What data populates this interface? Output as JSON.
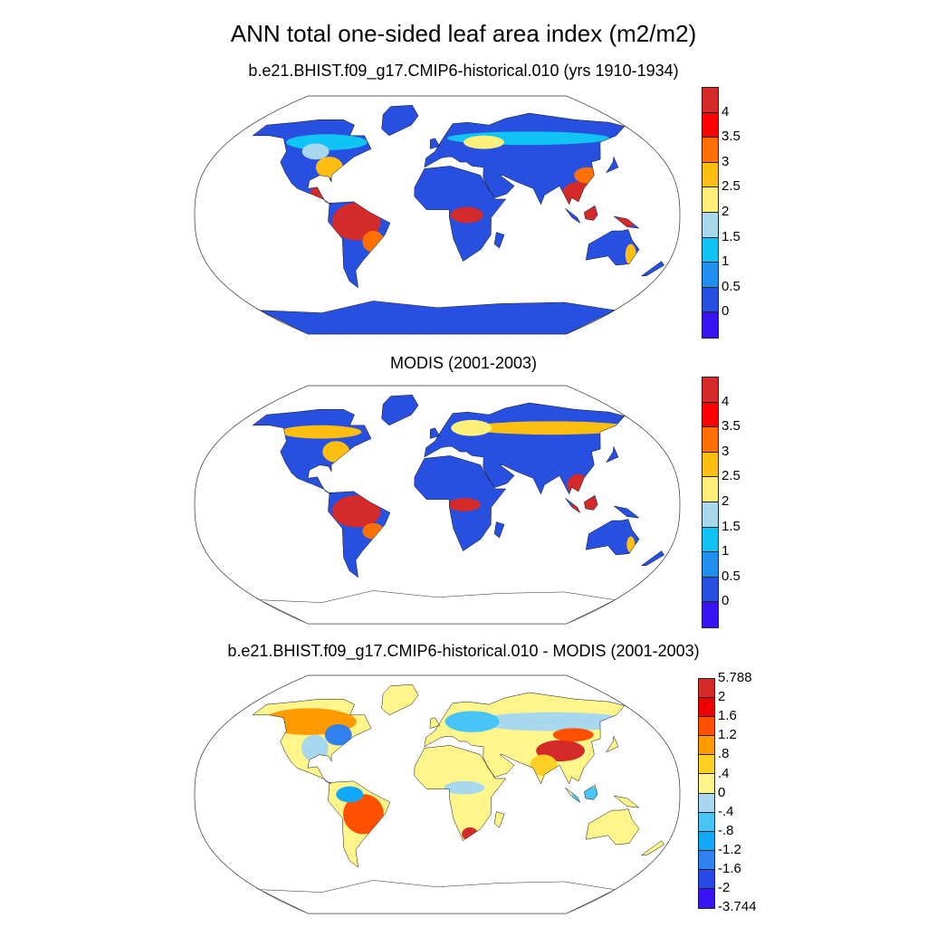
{
  "title": "ANN total one-sided leaf area index (m2/m2)",
  "panels": [
    {
      "subtitle": "b.e21.BHIST.f09_g17.CMIP6-historical.010 (yrs 1910-1934)",
      "colorbar": {
        "colors": [
          "#D42A2A",
          "#FF0000",
          "#FF7000",
          "#FFBF10",
          "#FFF07A",
          "#A8D8EE",
          "#10C4F6",
          "#2090F0",
          "#2850E0",
          "#3A14F0"
        ],
        "labels": [
          "4",
          "3.5",
          "3",
          "2.5",
          "2",
          "1.5",
          "1",
          "0.5",
          "0"
        ]
      }
    },
    {
      "subtitle": "MODIS (2001-2003)",
      "colorbar": {
        "colors": [
          "#D42A2A",
          "#FF0000",
          "#FF7000",
          "#FFBF10",
          "#FFF07A",
          "#A8D8EE",
          "#10C4F6",
          "#2090F0",
          "#2850E0",
          "#3A14F0"
        ],
        "labels": [
          "4",
          "3.5",
          "3",
          "2.5",
          "2",
          "1.5",
          "1",
          "0.5",
          "0"
        ]
      }
    },
    {
      "subtitle": "b.e21.BHIST.f09_g17.CMIP6-historical.010 - MODIS (2001-2003)",
      "colorbar": {
        "colors": [
          "#D42A2A",
          "#EE0000",
          "#FF5000",
          "#FF9A00",
          "#FFD024",
          "#FFF58A",
          "#A8D8EE",
          "#48C4F6",
          "#10A8F8",
          "#3080F0",
          "#2848E8",
          "#3A14F0"
        ],
        "labels": [
          "5.788",
          "2",
          "1.6",
          "1.2",
          ".8",
          ".4",
          "0",
          "-.4",
          "-.8",
          "-1.2",
          "-1.6",
          "-2",
          "-3.744"
        ]
      }
    }
  ]
}
